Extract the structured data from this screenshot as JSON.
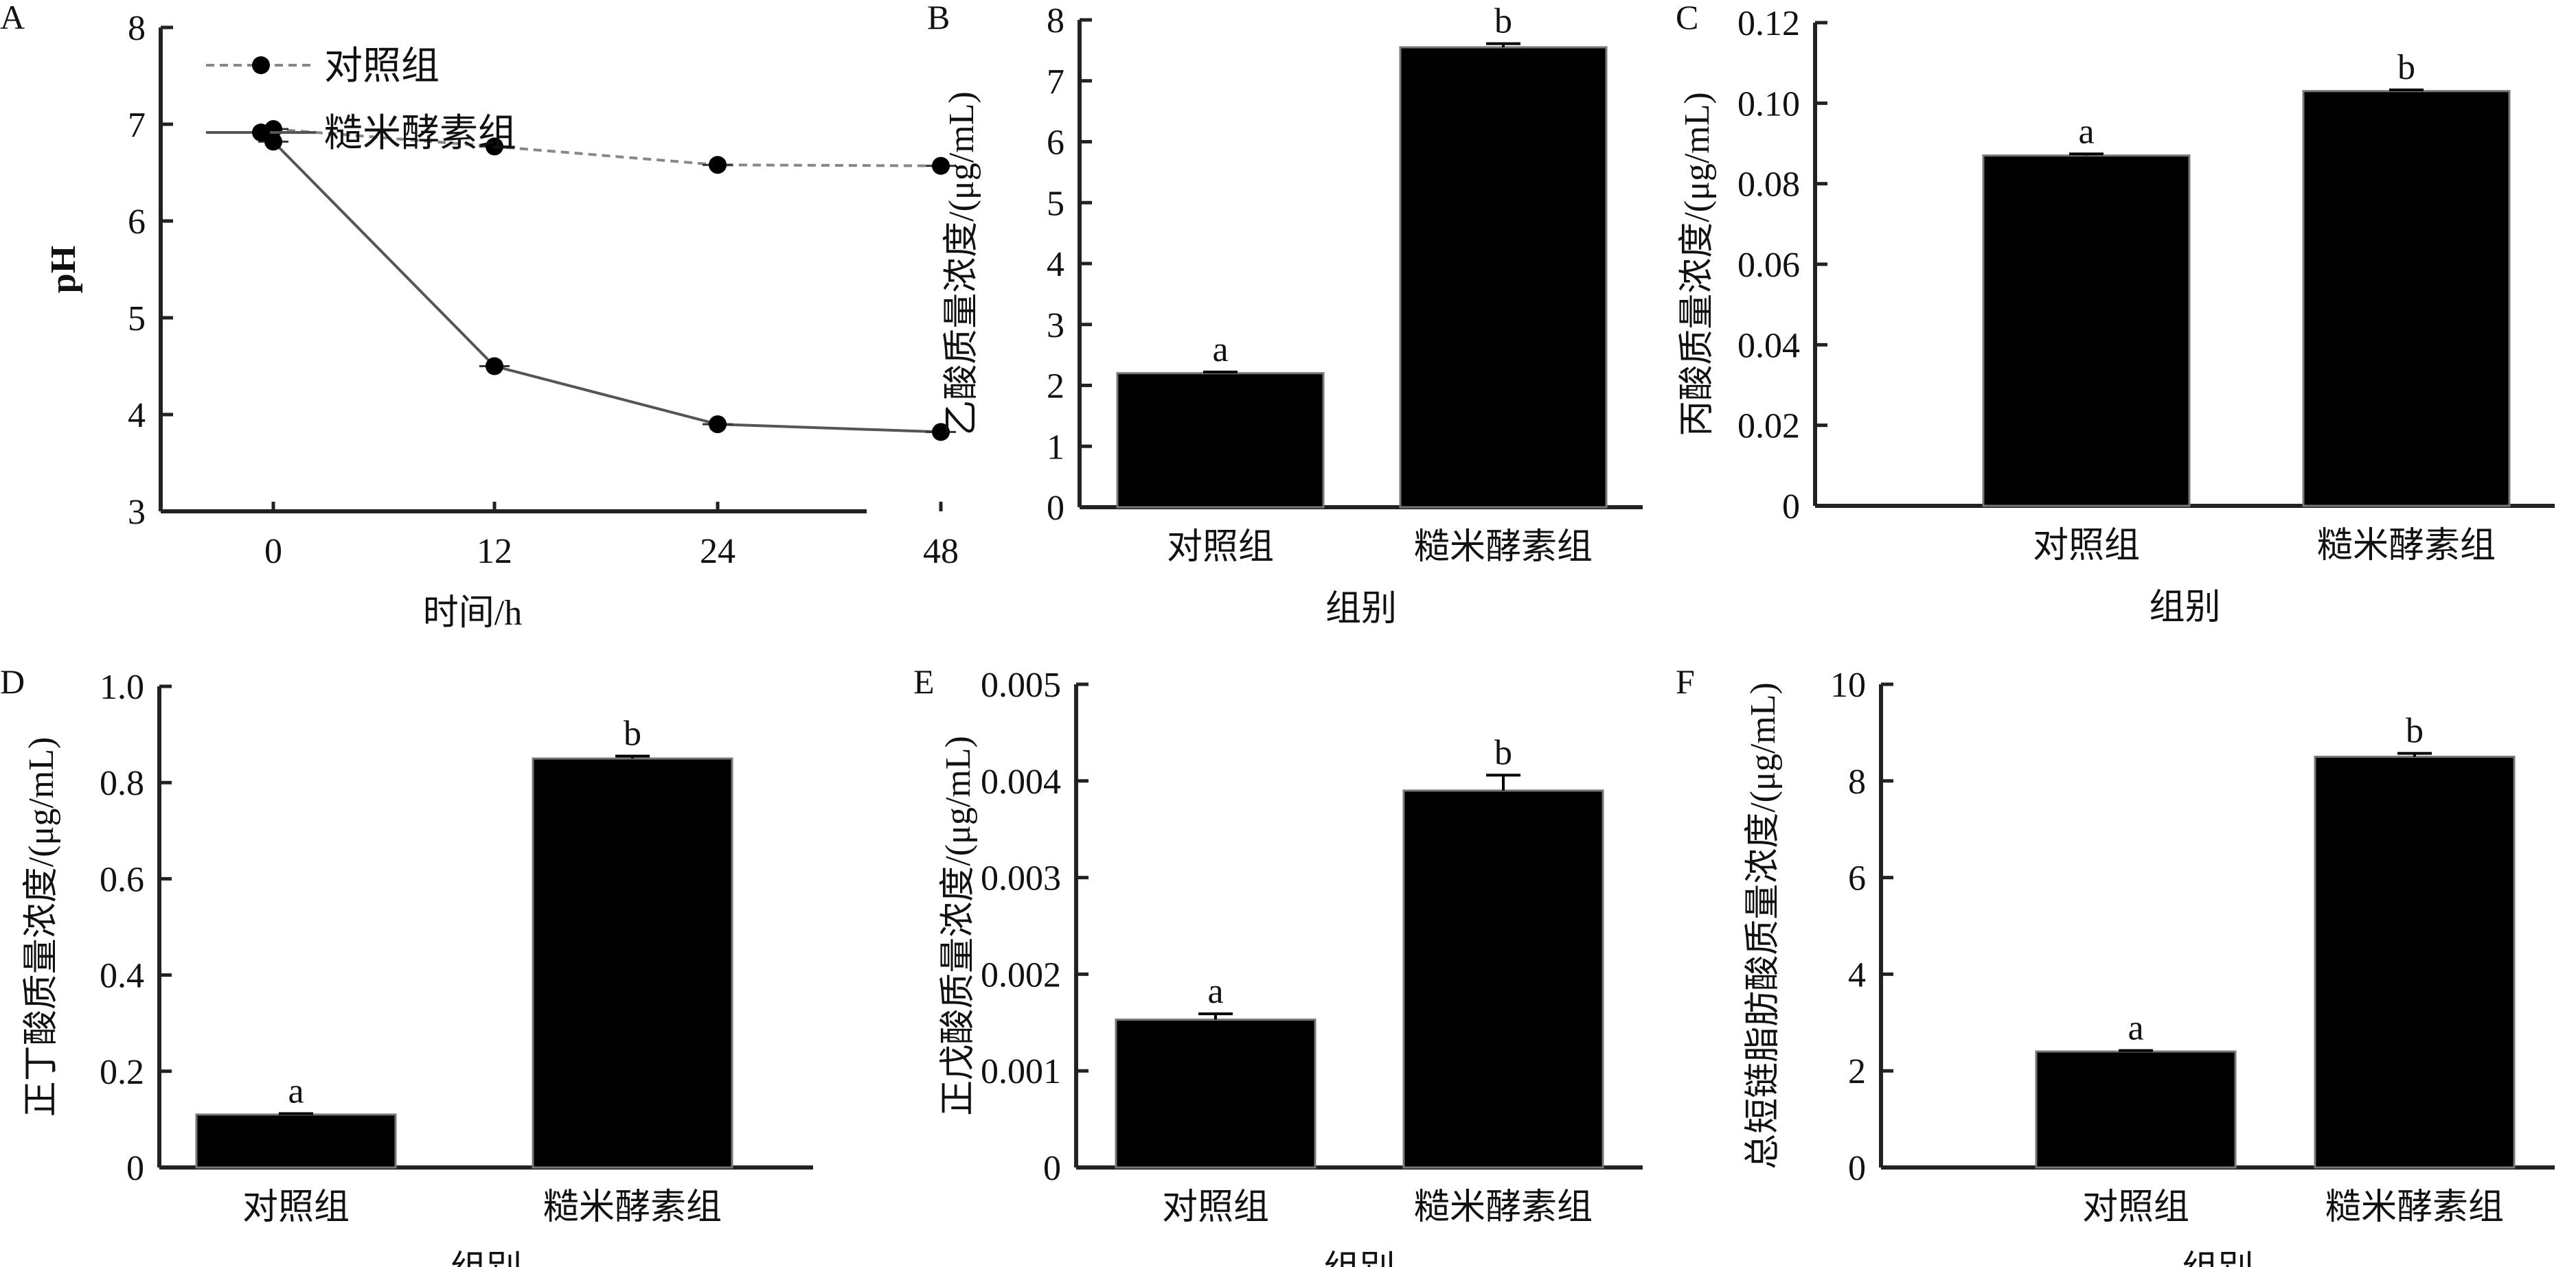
{
  "chart_data": [
    {
      "type": "line",
      "panel": "A",
      "ylabel": "pH",
      "xlabel": "时间/h",
      "categories": [
        "0",
        "12",
        "24",
        "48"
      ],
      "ylim": [
        3,
        8
      ],
      "yticks": [
        "3",
        "4",
        "5",
        "6",
        "7",
        "8"
      ],
      "legend_position": "top-left",
      "series": [
        {
          "name": "对照组",
          "style": "dashed",
          "values": [
            6.95,
            6.77,
            6.58,
            6.57
          ]
        },
        {
          "name": "糙米酵素组",
          "style": "solid",
          "values": [
            6.82,
            4.5,
            3.9,
            3.82
          ]
        }
      ]
    },
    {
      "type": "bar",
      "panel": "B",
      "ylabel": "乙酸质量浓度/(μg/mL)",
      "xlabel": "组别",
      "categories": [
        "对照组",
        "糙米酵素组"
      ],
      "values": [
        2.2,
        7.55
      ],
      "errors": [
        0.02,
        0.06
      ],
      "labels": [
        "a",
        "b"
      ],
      "ylim": [
        0,
        8
      ],
      "yticks": [
        "0",
        "1",
        "2",
        "3",
        "4",
        "5",
        "6",
        "7",
        "8"
      ]
    },
    {
      "type": "bar",
      "panel": "C",
      "ylabel": "丙酸质量浓度/(μg/mL)",
      "xlabel": "组别",
      "categories": [
        "对照组",
        "糙米酵素组"
      ],
      "values": [
        0.087,
        0.103
      ],
      "errors": [
        0.0004,
        0.0003
      ],
      "labels": [
        "a",
        "b"
      ],
      "ylim": [
        0,
        0.12
      ],
      "yticks": [
        "0",
        "0.02",
        "0.04",
        "0.06",
        "0.08",
        "0.10",
        "0.12"
      ]
    },
    {
      "type": "bar",
      "panel": "D",
      "ylabel": "正丁酸质量浓度/(μg/mL)",
      "xlabel": "组别",
      "categories": [
        "对照组",
        "糙米酵素组"
      ],
      "values": [
        0.11,
        0.85
      ],
      "errors": [
        0.002,
        0.005
      ],
      "labels": [
        "a",
        "b"
      ],
      "ylim": [
        0,
        1.0
      ],
      "yticks": [
        "0",
        "0.2",
        "0.4",
        "0.6",
        "0.8",
        "1.0"
      ]
    },
    {
      "type": "bar",
      "panel": "E",
      "ylabel": "正戊酸质量浓度/(μg/mL)",
      "xlabel": "组别",
      "categories": [
        "对照组",
        "糙米酵素组"
      ],
      "values": [
        0.00153,
        0.0039
      ],
      "errors": [
        6e-05,
        0.00016
      ],
      "labels": [
        "a",
        "b"
      ],
      "ylim": [
        0,
        0.005
      ],
      "yticks": [
        "0",
        "0.001",
        "0.002",
        "0.003",
        "0.004",
        "0.005"
      ]
    },
    {
      "type": "bar",
      "panel": "F",
      "ylabel": "总短链脂肪酸质量浓度/(μg/mL)",
      "xlabel": "组别",
      "categories": [
        "对照组",
        "糙米酵素组"
      ],
      "values": [
        2.4,
        8.5
      ],
      "errors": [
        0.02,
        0.07
      ],
      "labels": [
        "a",
        "b"
      ],
      "ylim": [
        0,
        10
      ],
      "yticks": [
        "0",
        "2",
        "4",
        "6",
        "8",
        "10"
      ]
    }
  ]
}
